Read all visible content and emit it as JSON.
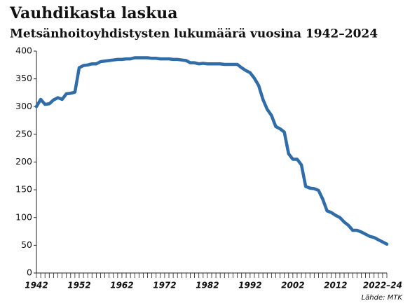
{
  "chart_data": {
    "type": "line",
    "title": "Vauhdikasta laskua",
    "subtitle": "Metsänhoitoyhdistysten lukumäärä vuosina 1942–2024",
    "source": "Lähde: MTK",
    "x": [
      1942,
      1943,
      1944,
      1945,
      1946,
      1947,
      1948,
      1949,
      1950,
      1951,
      1952,
      1953,
      1954,
      1955,
      1956,
      1957,
      1958,
      1959,
      1960,
      1961,
      1962,
      1963,
      1964,
      1965,
      1966,
      1967,
      1968,
      1969,
      1970,
      1971,
      1972,
      1973,
      1974,
      1975,
      1976,
      1977,
      1978,
      1979,
      1980,
      1981,
      1982,
      1983,
      1984,
      1985,
      1986,
      1987,
      1988,
      1989,
      1990,
      1991,
      1992,
      1993,
      1994,
      1995,
      1996,
      1997,
      1998,
      1999,
      2000,
      2001,
      2002,
      2003,
      2004,
      2005,
      2006,
      2007,
      2008,
      2009,
      2010,
      2011,
      2012,
      2013,
      2014,
      2015,
      2016,
      2017,
      2018,
      2019,
      2020,
      2021,
      2022,
      2023,
      2024
    ],
    "values": [
      300,
      313,
      304,
      305,
      312,
      316,
      313,
      323,
      324,
      326,
      370,
      374,
      375,
      377,
      377,
      381,
      382,
      383,
      384,
      385,
      385,
      386,
      386,
      388,
      388,
      388,
      388,
      387,
      387,
      386,
      386,
      386,
      385,
      385,
      384,
      383,
      379,
      379,
      377,
      378,
      377,
      377,
      377,
      377,
      376,
      376,
      376,
      376,
      370,
      365,
      361,
      351,
      338,
      313,
      295,
      284,
      264,
      260,
      254,
      215,
      205,
      205,
      195,
      156,
      153,
      152,
      149,
      133,
      112,
      109,
      104,
      100,
      92,
      86,
      77,
      77,
      74,
      70,
      66,
      64,
      60,
      56,
      52
    ],
    "color": "#2f6ca8",
    "xlim": [
      1942,
      2024
    ],
    "ylim": [
      0,
      400
    ],
    "xticks": [
      1942,
      1952,
      1962,
      1972,
      1982,
      1992,
      2002,
      2012,
      {
        "value": 2023,
        "label": "2022–24"
      }
    ],
    "yticks": [
      0,
      50,
      100,
      150,
      200,
      250,
      300,
      350,
      400
    ]
  }
}
